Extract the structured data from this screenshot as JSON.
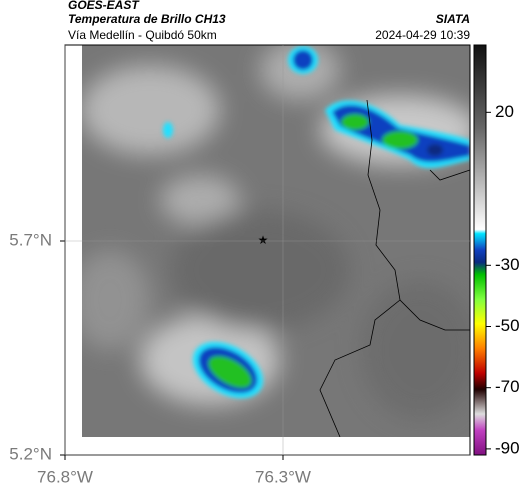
{
  "header": {
    "satellite": "GOES-EAST",
    "product": "Temperatura de Brillo CH13",
    "region": "Vía Medellín - Quibdó 50km",
    "source": "SIATA",
    "timestamp": "2024-04-29 10:39"
  },
  "map": {
    "lat_ticks": [
      {
        "value": 5.7,
        "label": "5.7°N"
      },
      {
        "value": 5.2,
        "label": "5.2°N"
      }
    ],
    "lon_ticks": [
      {
        "value": -76.8,
        "label": "76.8°W"
      },
      {
        "value": -76.3,
        "label": "76.3°W"
      }
    ]
  },
  "colorbar": {
    "range": [
      -92,
      42
    ],
    "ticks": [
      20,
      -30,
      -50,
      -70,
      -90
    ]
  }
}
